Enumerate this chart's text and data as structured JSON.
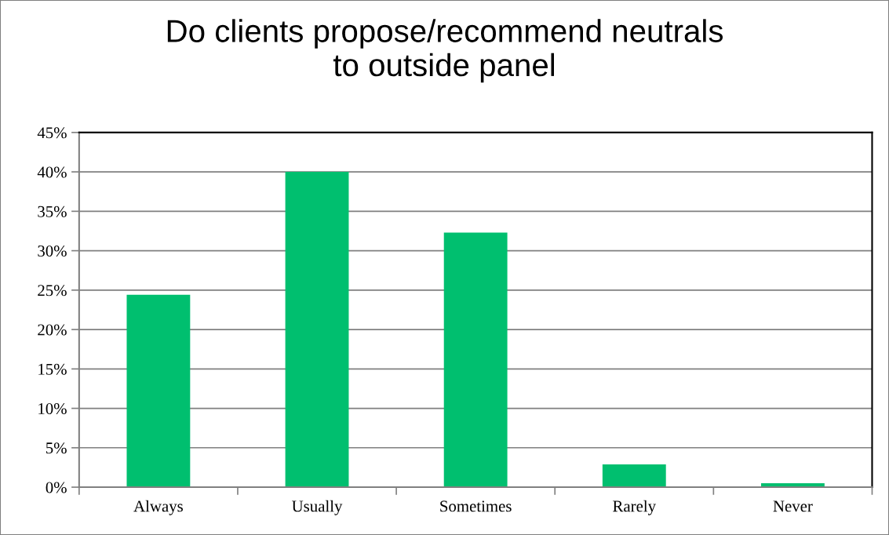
{
  "chart_data": {
    "type": "bar",
    "title": "Do clients propose/recommend neutrals\nto outside panel",
    "categories": [
      "Always",
      "Usually",
      "Sometimes",
      "Rarely",
      "Never"
    ],
    "values": [
      24.4,
      40.0,
      32.3,
      2.9,
      0.5
    ],
    "color": "#00bf6f",
    "ylim": [
      0,
      45
    ],
    "yticks": [
      {
        "value": 0,
        "label": "0%"
      },
      {
        "value": 5,
        "label": "5%"
      },
      {
        "value": 10,
        "label": "10%"
      },
      {
        "value": 15,
        "label": "15%"
      },
      {
        "value": 20,
        "label": "20%"
      },
      {
        "value": 25,
        "label": "25%"
      },
      {
        "value": 30,
        "label": "30%"
      },
      {
        "value": 35,
        "label": "35%"
      },
      {
        "value": 40,
        "label": "40%"
      },
      {
        "value": 45,
        "label": "45%"
      }
    ],
    "grid": "y"
  }
}
